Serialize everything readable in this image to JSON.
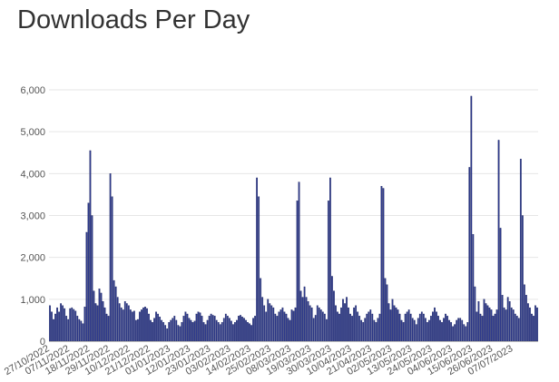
{
  "header": {
    "title": "Downloads Per Day"
  },
  "colors": {
    "bar": "#2e3a8c",
    "bar_stroke": "#111a55",
    "grid": "#e6e6e6",
    "axis": "#b8b8b8",
    "text": "#555555",
    "title": "#333333"
  },
  "chart_data": {
    "type": "bar",
    "title": "Downloads Per Day",
    "xlabel": "",
    "ylabel": "",
    "ylim": [
      0,
      6000
    ],
    "y_ticks": [
      0,
      1000,
      2000,
      3000,
      4000,
      5000,
      6000
    ],
    "y_tick_labels": [
      "0",
      "1,000",
      "2,000",
      "3,000",
      "4,000",
      "5,000",
      "6,000"
    ],
    "x_tick_labels": [
      "27/10/2022",
      "07/11/2022",
      "18/11/2022",
      "29/11/2022",
      "10/12/2022",
      "21/12/2022",
      "01/01/2023",
      "12/01/2023",
      "23/01/2023",
      "03/02/2023",
      "14/02/2023",
      "25/02/2023",
      "08/03/2023",
      "19/03/2023",
      "30/03/2023",
      "10/04/2023",
      "21/04/2023",
      "02/05/2023",
      "13/05/2023",
      "24/05/2023",
      "04/06/2023",
      "15/06/2023",
      "26/06/2023",
      "07/07/2023"
    ],
    "grid": true,
    "legend": "none",
    "series": [
      {
        "start_date": "27/10/2022",
        "values": [
          850,
          700,
          520,
          650,
          800,
          700,
          900,
          850,
          780,
          600,
          520,
          780,
          800,
          760,
          720,
          600,
          520,
          480,
          420,
          820,
          2600,
          3300,
          4550,
          3000,
          1200,
          900,
          850,
          1250,
          1150,
          950,
          800,
          650,
          600,
          4000,
          3450,
          1450,
          1300,
          1050,
          900,
          800,
          750,
          950,
          900,
          850,
          750,
          700,
          720,
          500,
          520,
          700,
          750,
          800,
          820,
          780,
          650,
          500,
          450,
          550,
          700,
          650,
          580,
          500,
          450,
          380,
          300,
          450,
          500,
          550,
          600,
          500,
          380,
          350,
          450,
          600,
          700,
          650,
          550,
          500,
          450,
          480,
          650,
          700,
          680,
          600,
          450,
          400,
          500,
          600,
          650,
          620,
          600,
          500,
          450,
          400,
          450,
          550,
          650,
          600,
          550,
          480,
          400,
          450,
          500,
          600,
          620,
          580,
          550,
          500,
          450,
          420,
          380,
          550,
          600,
          3900,
          3450,
          1500,
          1050,
          850,
          700,
          1000,
          900,
          850,
          800,
          650,
          600,
          700,
          750,
          800,
          700,
          650,
          550,
          500,
          750,
          720,
          800,
          3350,
          3800,
          1200,
          1050,
          1300,
          1050,
          950,
          850,
          800,
          550,
          620,
          850,
          800,
          750,
          700,
          650,
          520,
          3350,
          3900,
          1550,
          1200,
          850,
          700,
          650,
          800,
          1000,
          900,
          1050,
          800,
          650,
          600,
          800,
          850,
          700,
          600,
          500,
          450,
          550,
          650,
          700,
          750,
          650,
          500,
          450,
          550,
          650,
          3700,
          3650,
          1500,
          1350,
          900,
          750,
          1000,
          850,
          800,
          750,
          650,
          500,
          450,
          650,
          700,
          750,
          650,
          550,
          500,
          400,
          550,
          650,
          700,
          650,
          550,
          450,
          500,
          600,
          700,
          800,
          700,
          600,
          500,
          450,
          550,
          650,
          600,
          500,
          450,
          350,
          400,
          500,
          550,
          550,
          500,
          400,
          350,
          450,
          4150,
          5850,
          2550,
          1300,
          700,
          950,
          650,
          600,
          1000,
          900,
          850,
          800,
          750,
          600,
          650,
          750,
          4800,
          2700,
          1100,
          800,
          750,
          1050,
          950,
          800,
          750,
          650,
          600,
          550,
          4350,
          3000,
          1350,
          1100,
          900,
          800,
          650,
          600,
          850,
          800
        ]
      }
    ]
  }
}
